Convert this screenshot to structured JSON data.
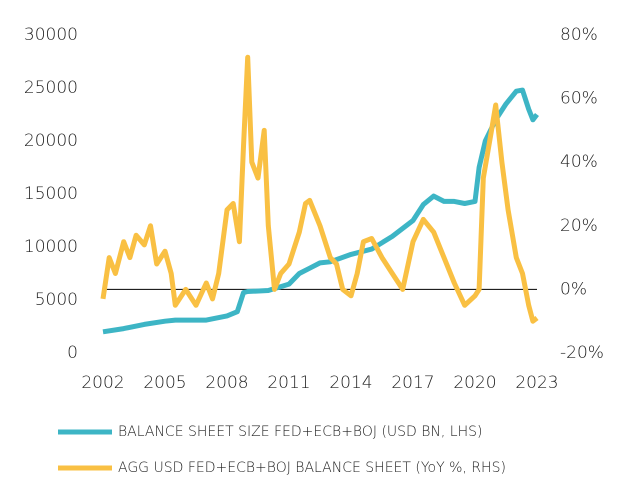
{
  "chart_data": {
    "type": "line",
    "legend": "bottom",
    "xlim": [
      2002,
      2023
    ],
    "xticks": [
      2002,
      2005,
      2008,
      2011,
      2014,
      2017,
      2020,
      2023
    ],
    "ylim": [
      0,
      30000
    ],
    "yticks": [
      0,
      5000,
      10000,
      15000,
      20000,
      25000,
      30000
    ],
    "y2lim": [
      -20,
      80
    ],
    "y2ticks": [
      {
        "value": -20,
        "label": "-20%"
      },
      {
        "value": 0,
        "label": "0%"
      },
      {
        "value": 20,
        "label": "20%"
      },
      {
        "value": 40,
        "label": "40%"
      },
      {
        "value": 60,
        "label": "60%"
      },
      {
        "value": 80,
        "label": "80%"
      }
    ],
    "series": [
      {
        "name": "BALANCE SHEET SIZE FED+ECB+BOJ (USD BN, LHS)",
        "color": "#3db5c5",
        "x": [
          2002,
          2003,
          2004,
          2005,
          2005.5,
          2006,
          2007,
          2008,
          2008.5,
          2008.8,
          2009,
          2010,
          2011,
          2011.5,
          2012,
          2012.5,
          2013,
          2014,
          2015,
          2016,
          2017,
          2017.5,
          2018,
          2018.5,
          2019,
          2019.5,
          2020,
          2020.2,
          2020.5,
          2021,
          2021.5,
          2022,
          2022.3,
          2022.6,
          2022.8,
          2023
        ],
        "values": [
          2000,
          2300,
          2700,
          3000,
          3100,
          3100,
          3100,
          3500,
          3900,
          5700,
          5800,
          5900,
          6500,
          7500,
          8000,
          8500,
          8600,
          9300,
          9800,
          11000,
          12500,
          14000,
          14800,
          14300,
          14300,
          14100,
          14300,
          17500,
          20000,
          22000,
          23500,
          24700,
          24800,
          23000,
          22000,
          22500
        ]
      },
      {
        "name": "AGG USD FED+ECB+BOJ BALANCE SHEET (YoY %, RHS)",
        "color": "#f9c043",
        "axis": "y2",
        "x": [
          2002,
          2002.3,
          2002.6,
          2003,
          2003.3,
          2003.6,
          2004,
          2004.3,
          2004.6,
          2005,
          2005.3,
          2005.5,
          2006,
          2006.5,
          2007,
          2007.3,
          2007.6,
          2008,
          2008.3,
          2008.6,
          2008.8,
          2009,
          2009.2,
          2009.5,
          2009.8,
          2010,
          2010.3,
          2010.6,
          2011,
          2011.5,
          2011.8,
          2012,
          2012.5,
          2013,
          2013.3,
          2013.6,
          2014,
          2014.3,
          2014.6,
          2015,
          2015.5,
          2016,
          2016.5,
          2017,
          2017.5,
          2018,
          2018.5,
          2019,
          2019.5,
          2020,
          2020.2,
          2020.4,
          2020.8,
          2021,
          2021.3,
          2021.6,
          2022,
          2022.3,
          2022.6,
          2022.8,
          2023
        ],
        "values": [
          -3,
          10,
          5,
          15,
          10,
          17,
          14,
          20,
          8,
          12,
          5,
          -5,
          0,
          -5,
          2,
          -3,
          5,
          25,
          27,
          15,
          45,
          73,
          40,
          35,
          50,
          20,
          0,
          5,
          8,
          18,
          27,
          28,
          20,
          10,
          8,
          0,
          -2,
          5,
          15,
          16,
          10,
          5,
          0,
          15,
          22,
          18,
          10,
          2,
          -5,
          -2,
          0,
          35,
          50,
          58,
          40,
          25,
          10,
          5,
          -5,
          -10,
          -9
        ]
      }
    ]
  }
}
